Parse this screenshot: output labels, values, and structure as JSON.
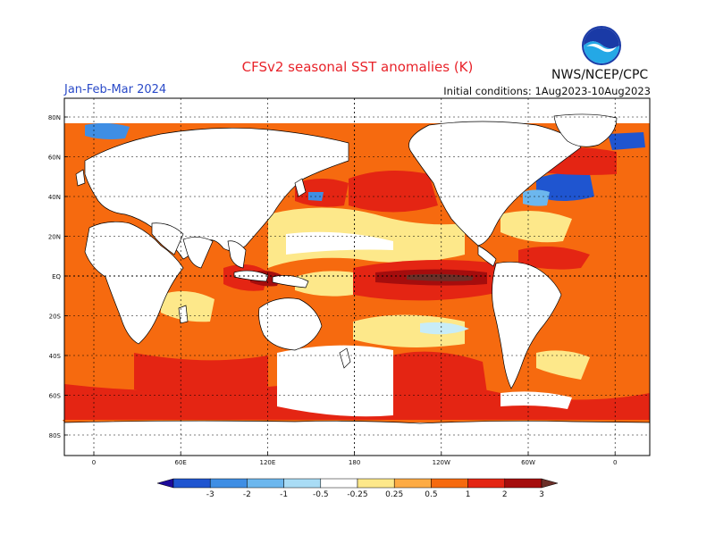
{
  "title": "CFSv2 seasonal SST anomalies (K)",
  "period": "Jan-Feb-Mar 2024",
  "org": "NWS/NCEP/CPC",
  "initial_conditions": "Initial conditions: 1Aug2023-10Aug2023",
  "logo_text": "NOAA",
  "lat_labels": [
    "80N",
    "60N",
    "40N",
    "20N",
    "EQ",
    "20S",
    "40S",
    "60S",
    "80S"
  ],
  "lon_labels": [
    "0",
    "60E",
    "120E",
    "180",
    "120W",
    "60W",
    "0"
  ],
  "colorbar": {
    "labels": [
      "-3",
      "-2",
      "-1",
      "-0.5",
      "-0.25",
      "0.25",
      "0.5",
      "1",
      "2",
      "3"
    ],
    "colors": [
      "#1c0a9a",
      "#1f55d0",
      "#3f8ee4",
      "#6cb7ee",
      "#a9dcf5",
      "#ffffff",
      "#fde88a",
      "#fdab44",
      "#f66a0f",
      "#e42513",
      "#a50d0d",
      "#6b2f28"
    ]
  }
}
